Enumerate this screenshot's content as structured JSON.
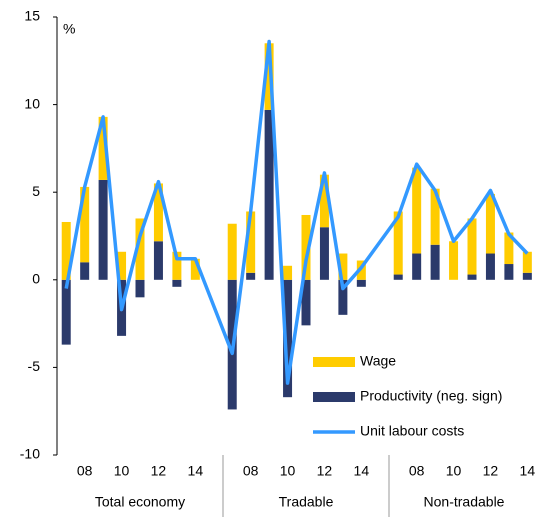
{
  "chart_data": {
    "type": "bar",
    "stacked": true,
    "annotation": "%",
    "groups": [
      "Total economy",
      "Tradable",
      "Non-tradable"
    ],
    "categories": [
      null,
      "08",
      null,
      "10",
      null,
      "12",
      null,
      "14",
      null,
      "08",
      null,
      "10",
      null,
      "12",
      null,
      "14",
      null,
      "08",
      null,
      "10",
      null,
      "12",
      null,
      "14"
    ],
    "series": [
      {
        "name": "Productivity (neg. sign)",
        "color": "#2b3a6b",
        "type": "bar",
        "legend_order": 2,
        "values": [
          -3.7,
          1.0,
          5.7,
          -3.2,
          -1.0,
          2.2,
          -0.4,
          0,
          -7.4,
          0.4,
          9.7,
          -6.7,
          -2.6,
          3.0,
          -2.0,
          -0.4,
          0.3,
          1.5,
          2.0,
          0,
          0.3,
          1.5,
          0.9,
          0.4
        ]
      },
      {
        "name": "Wage",
        "color": "#ffcc00",
        "type": "bar",
        "legend_order": 1,
        "values": [
          3.3,
          4.3,
          3.6,
          1.6,
          3.5,
          3.3,
          1.6,
          1.2,
          3.2,
          3.5,
          3.8,
          0.8,
          3.7,
          3.0,
          1.5,
          1.1,
          3.6,
          4.9,
          3.2,
          2.2,
          3.2,
          3.4,
          1.8,
          1.2
        ]
      },
      {
        "name": "Unit labour costs",
        "color": "#3399ff",
        "type": "line",
        "legend_order": 3,
        "values": [
          -0.5,
          5.3,
          9.3,
          -1.7,
          2.5,
          5.6,
          1.2,
          1.2,
          -4.2,
          3.9,
          13.6,
          -5.9,
          1.1,
          6.1,
          -0.5,
          0.7,
          3.6,
          6.6,
          5.1,
          2.2,
          3.5,
          5.1,
          2.6,
          1.5
        ]
      }
    ],
    "ylim": [
      -10,
      15
    ],
    "yticks": [
      -10,
      -5,
      0,
      5,
      10,
      15
    ],
    "grid": false
  }
}
